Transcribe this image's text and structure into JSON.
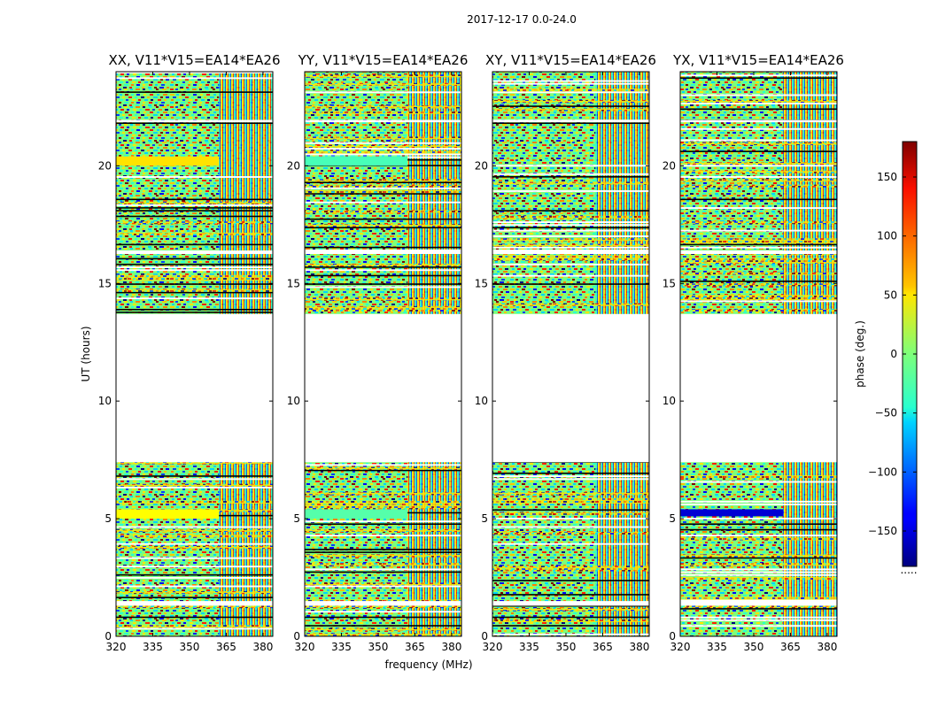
{
  "chart_data": {
    "type": "heatmap",
    "suptitle": "2017-12-17 0.0-24.0",
    "xlabel": "frequency (MHz)",
    "ylabel": "UT (hours)",
    "xlim": [
      320,
      384
    ],
    "ylim": [
      0,
      24
    ],
    "xticks": [
      320,
      335,
      350,
      365,
      380
    ],
    "yticks": [
      0,
      5,
      10,
      15,
      20
    ],
    "panels": [
      {
        "title": "XX, V11*V15=EA14*EA26",
        "stripes": [
          {
            "t0": 5.0,
            "t1": 5.4,
            "value": 45
          },
          {
            "t0": 20.0,
            "t1": 20.4,
            "value": 55
          }
        ]
      },
      {
        "title": "YY, V11*V15=EA14*EA26",
        "stripes": [
          {
            "t0": 5.0,
            "t1": 5.4,
            "value": -15
          },
          {
            "t0": 20.0,
            "t1": 20.4,
            "value": -20
          }
        ]
      },
      {
        "title": "XY, V11*V15=EA14*EA26",
        "stripes": []
      },
      {
        "title": "YX, V11*V15=EA14*EA26",
        "stripes": [
          {
            "t0": 5.1,
            "t1": 5.4,
            "value": -150
          }
        ]
      }
    ],
    "data_gaps_hours": [
      [
        7.4,
        13.7
      ],
      [
        1.3,
        1.5
      ],
      [
        21.85,
        21.95
      ],
      [
        16.25,
        16.4
      ]
    ],
    "colorbar": {
      "label": "phase (deg.)",
      "range": [
        -180,
        180
      ],
      "ticks": [
        150,
        100,
        50,
        0,
        -50,
        -100,
        -150
      ],
      "colormap": "jet",
      "below_mark": "....."
    }
  }
}
